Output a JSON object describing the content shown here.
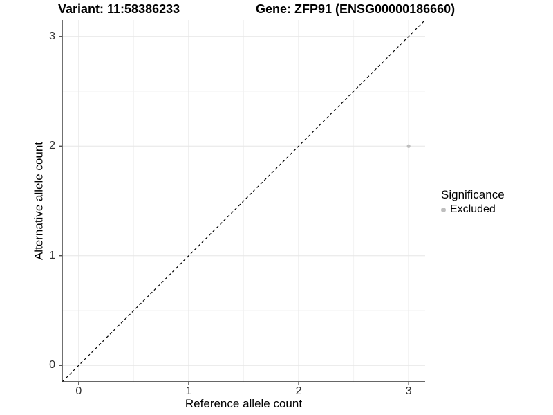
{
  "header": {
    "variant_title": "Variant: 11:58386233",
    "gene_title": "Gene: ZFP91 (ENSG00000186660)"
  },
  "axes": {
    "x": {
      "label": "Reference allele count",
      "tick_labels": [
        "0",
        "1",
        "2",
        "3"
      ]
    },
    "y": {
      "label": "Alternative allele count",
      "tick_labels": [
        "0",
        "1",
        "2",
        "3"
      ]
    }
  },
  "legend": {
    "title": "Significance",
    "items": [
      {
        "label": "Excluded",
        "color": "#bebebe"
      }
    ]
  },
  "chart_data": {
    "type": "scatter",
    "title": "Variant: 11:58386233 | Gene: ZFP91 (ENSG00000186660)",
    "xlabel": "Reference allele count",
    "ylabel": "Alternative allele count",
    "xlim": [
      -0.15,
      3.15
    ],
    "ylim": [
      -0.15,
      3.15
    ],
    "x_ticks": [
      0,
      1,
      2,
      3
    ],
    "y_ticks": [
      0,
      1,
      2,
      3
    ],
    "x_minor_ticks": [
      0.5,
      1.5,
      2.5
    ],
    "y_minor_ticks": [
      0.5,
      1.5,
      2.5
    ],
    "grid": "major+minor",
    "legend_position": "right",
    "series": [
      {
        "name": "Excluded",
        "color": "#bebebe",
        "points": [
          {
            "x": 3,
            "y": 2
          }
        ]
      }
    ],
    "reference_line": {
      "type": "identity y=x",
      "style": "dashed",
      "color": "#000000"
    }
  },
  "colors": {
    "background": "#ffffff",
    "grid_major": "#e6e6e6",
    "grid_minor": "#f2f2f2",
    "axis": "#333333",
    "tick_text": "#303030",
    "point": "#bebebe",
    "dashed_line": "#000000"
  }
}
